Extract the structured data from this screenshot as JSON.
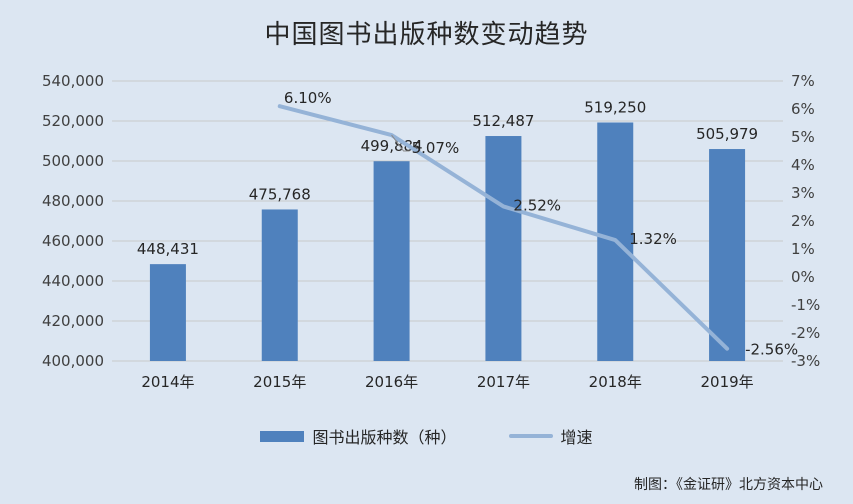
{
  "chart_data": {
    "type": "bar",
    "title": "中国图书出版种数变动趋势",
    "categories": [
      "2014年",
      "2015年",
      "2016年",
      "2017年",
      "2018年",
      "2019年"
    ],
    "series": [
      {
        "name": "图书出版种数（种）",
        "type": "bar",
        "axis": "left",
        "values": [
          448431,
          475768,
          499884,
          512487,
          519250,
          505979
        ],
        "labels": [
          "448,431",
          "475,768",
          "499,884",
          "512,487",
          "519,250",
          "505,979"
        ],
        "color": "#4f81bd"
      },
      {
        "name": "增速",
        "type": "line",
        "axis": "right",
        "values": [
          null,
          6.1,
          5.07,
          2.52,
          1.32,
          -2.56
        ],
        "labels": [
          "",
          "6.10%",
          "5.07%",
          "2.52%",
          "1.32%",
          "-2.56%"
        ],
        "color": "#95b3d7"
      }
    ],
    "ylim_left": [
      400000,
      540000
    ],
    "yticks_left": [
      "400,000",
      "420,000",
      "440,000",
      "460,000",
      "480,000",
      "500,000",
      "520,000",
      "540,000"
    ],
    "ylim_right": [
      -3,
      7
    ],
    "yticks_right": [
      "-3%",
      "-2%",
      "-1%",
      "0%",
      "1%",
      "2%",
      "3%",
      "4%",
      "5%",
      "6%",
      "7%"
    ],
    "grid": true,
    "legend_position": "bottom"
  },
  "legend": {
    "bar_label": "图书出版种数（种）",
    "line_label": "增速"
  },
  "credit": "制图：《金证研》北方资本中心"
}
